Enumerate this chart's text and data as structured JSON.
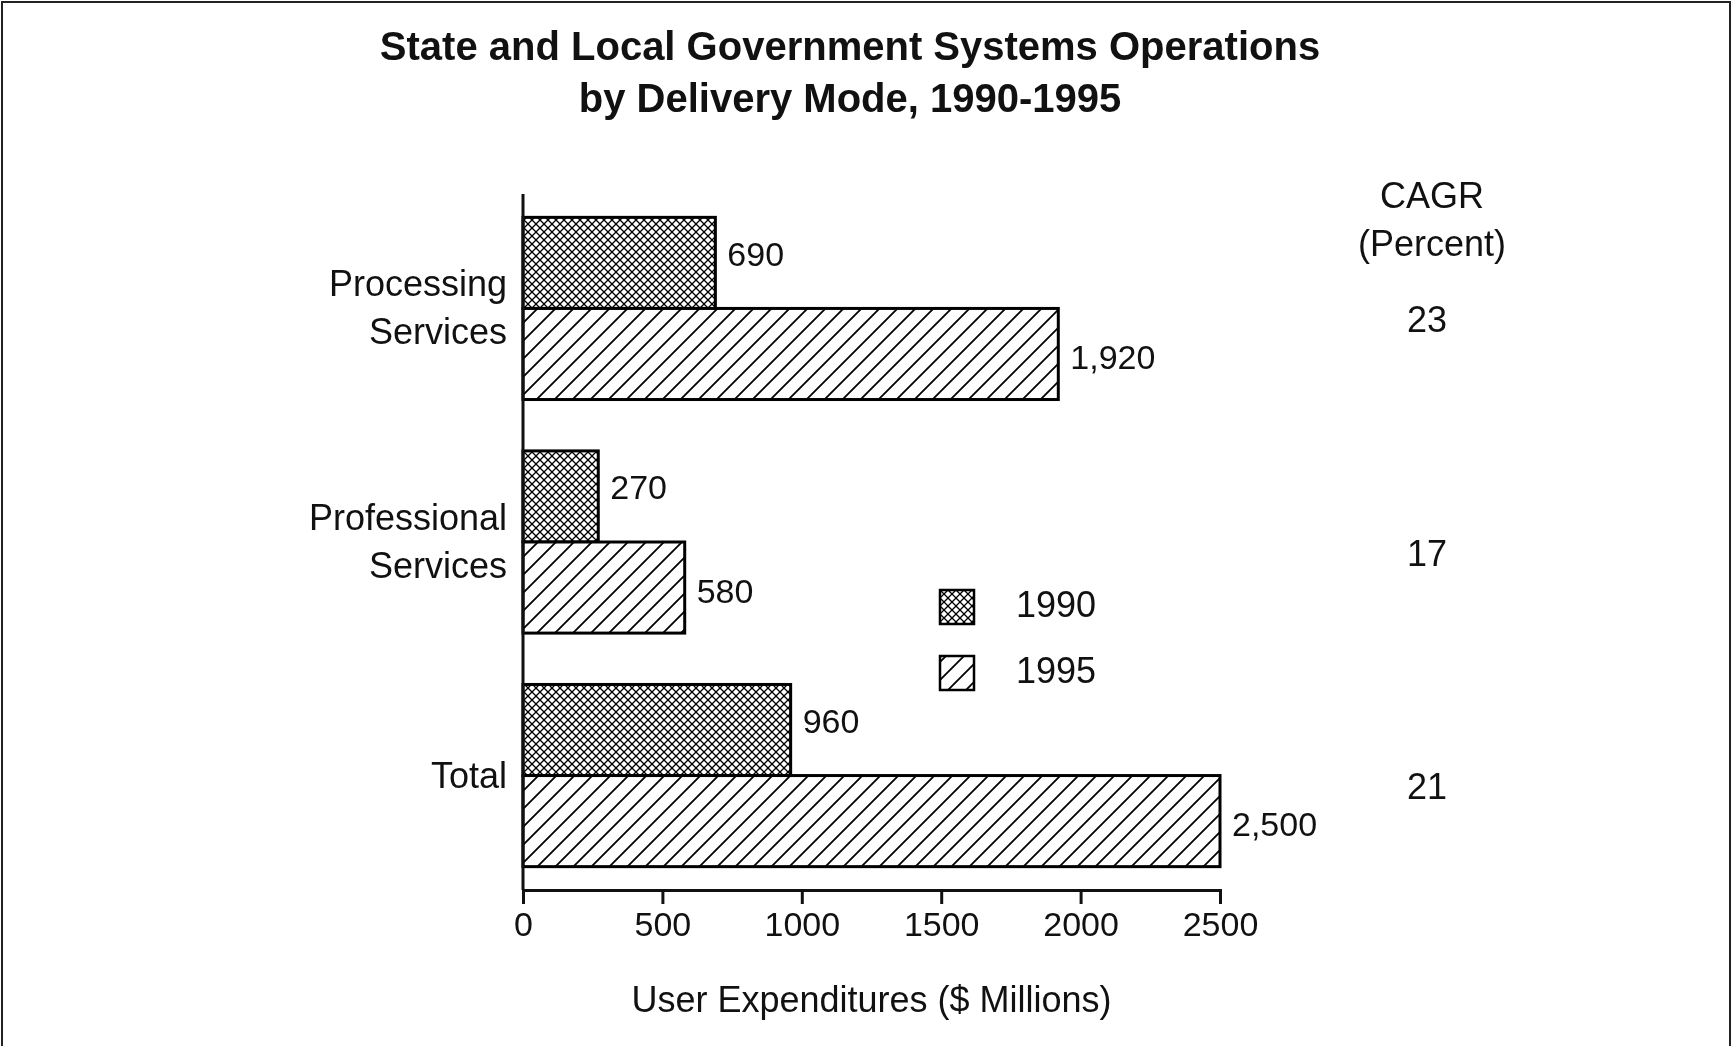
{
  "chart_data": {
    "type": "bar",
    "orientation": "horizontal",
    "title": "State and Local Government Systems Operations\nby Delivery Mode, 1990-1995",
    "xlabel": "User Expenditures ($ Millions)",
    "categories": [
      "Processing\nServices",
      "Professional\nServices",
      "Total"
    ],
    "series": [
      {
        "name": "1990",
        "color": "#000000",
        "values": [
          690,
          270,
          960
        ],
        "value_labels": [
          "690",
          "270",
          "960"
        ]
      },
      {
        "name": "1995",
        "color": "#000000",
        "values": [
          1920,
          580,
          2500
        ],
        "value_labels": [
          "1,920",
          "580",
          "2,500"
        ]
      }
    ],
    "xlim": [
      0,
      2500
    ],
    "xticks": [
      0,
      500,
      1000,
      1500,
      2000,
      2500
    ],
    "legend": "center",
    "annotations": [
      "CAGR\n(Percent)",
      "23",
      "17",
      "21"
    ]
  }
}
